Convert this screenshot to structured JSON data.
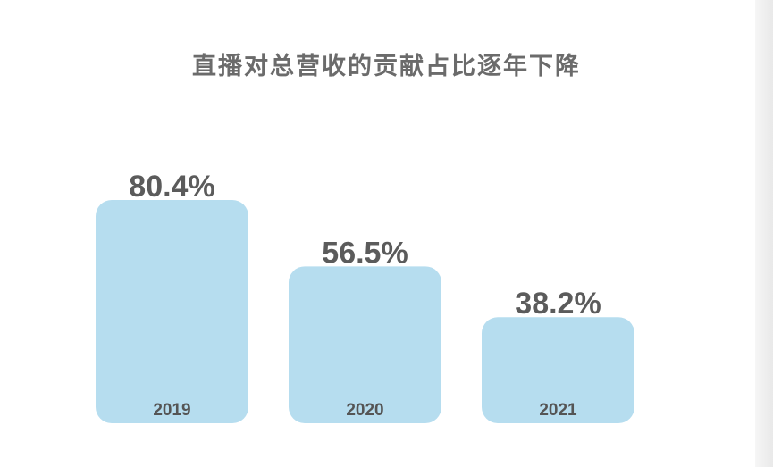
{
  "chart_data": {
    "type": "bar",
    "title": "直播对总营收的贡献占比逐年下降",
    "categories": [
      "2019",
      "2020",
      "2021"
    ],
    "values": [
      80.4,
      56.5,
      38.2
    ],
    "value_labels": [
      "80.4%",
      "56.5%",
      "38.2%"
    ],
    "xlabel": "",
    "ylabel": "",
    "ylim": [
      0,
      80.4
    ],
    "grid": false,
    "colors": {
      "bar": "#b6ddef",
      "value_text": "#5b5b5b",
      "category_text": "#555555",
      "title_text": "#6b6b6b"
    }
  }
}
